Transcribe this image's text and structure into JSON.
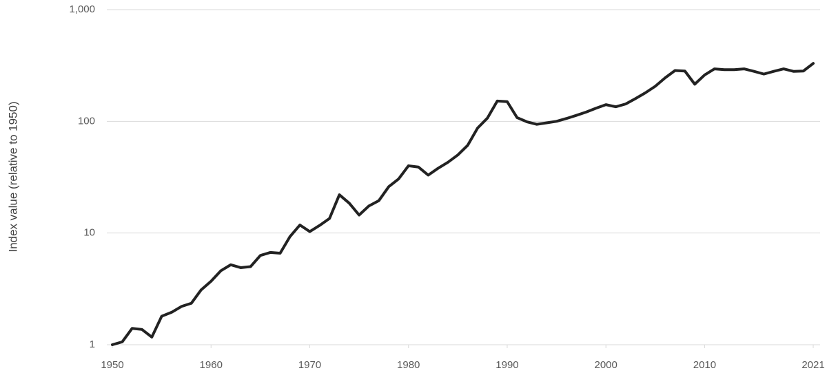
{
  "chart_data": {
    "type": "line",
    "y_label": "Index value (relative to 1950)",
    "x": [
      1950,
      1951,
      1952,
      1953,
      1954,
      1955,
      1956,
      1957,
      1958,
      1959,
      1960,
      1961,
      1962,
      1963,
      1964,
      1965,
      1966,
      1967,
      1968,
      1969,
      1970,
      1971,
      1972,
      1973,
      1974,
      1975,
      1976,
      1977,
      1978,
      1979,
      1980,
      1981,
      1982,
      1983,
      1984,
      1985,
      1986,
      1987,
      1988,
      1989,
      1990,
      1991,
      1992,
      1993,
      1994,
      1995,
      1996,
      1997,
      1998,
      1999,
      2000,
      2001,
      2002,
      2003,
      2004,
      2005,
      2006,
      2007,
      2008,
      2009,
      2010,
      2011,
      2012,
      2013,
      2014,
      2015,
      2016,
      2017,
      2018,
      2019,
      2020,
      2021
    ],
    "values": [
      1,
      1.06,
      1.4,
      1.37,
      1.17,
      1.8,
      1.95,
      2.2,
      2.35,
      3.1,
      3.7,
      4.6,
      5.2,
      4.9,
      5.0,
      6.3,
      6.7,
      6.6,
      9.3,
      11.8,
      10.3,
      11.7,
      13.5,
      22,
      18.5,
      14.5,
      17.5,
      19.5,
      26,
      30.5,
      40,
      39,
      33,
      38,
      43,
      50,
      61,
      87,
      107,
      152,
      150,
      108,
      99,
      94,
      97,
      100,
      106,
      113,
      121,
      131,
      141,
      135,
      143,
      160,
      180,
      206,
      245,
      285,
      282,
      215,
      260,
      295,
      290,
      290,
      295,
      280,
      265,
      280,
      295,
      280,
      282,
      330
    ],
    "color": "#222222",
    "xlim": [
      1950,
      2021
    ],
    "xticks": [
      1950,
      1960,
      1970,
      1980,
      1990,
      2000,
      2010,
      2021
    ],
    "ylim": [
      1,
      1000
    ],
    "yticks": [
      1,
      10,
      100,
      {
        "value": 1000,
        "label": "1,000"
      }
    ],
    "log_y": true,
    "grid": true
  }
}
